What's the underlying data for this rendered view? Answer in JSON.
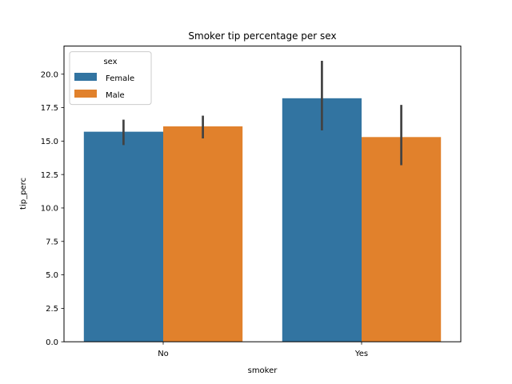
{
  "chart_data": {
    "type": "bar",
    "title": "Smoker tip percentage per sex",
    "xlabel": "smoker",
    "ylabel": "tip_perc",
    "categories": [
      "No",
      "Yes"
    ],
    "ylim": [
      0,
      22.1
    ],
    "yticks": [
      0.0,
      2.5,
      5.0,
      7.5,
      10.0,
      12.5,
      15.0,
      17.5,
      20.0
    ],
    "ytick_labels": [
      "0.0",
      "2.5",
      "5.0",
      "7.5",
      "10.0",
      "12.5",
      "15.0",
      "17.5",
      "20.0"
    ],
    "legend": {
      "title": "sex",
      "placement": "upper-left"
    },
    "series": [
      {
        "name": "Female",
        "color": "#3274a1",
        "values": [
          15.7,
          18.2
        ],
        "ci_low": [
          14.7,
          15.8
        ],
        "ci_high": [
          16.6,
          21.0
        ]
      },
      {
        "name": "Male",
        "color": "#e1812c",
        "values": [
          16.1,
          15.3
        ],
        "ci_low": [
          15.2,
          13.2
        ],
        "ci_high": [
          16.9,
          17.7
        ]
      }
    ],
    "grid": false
  }
}
